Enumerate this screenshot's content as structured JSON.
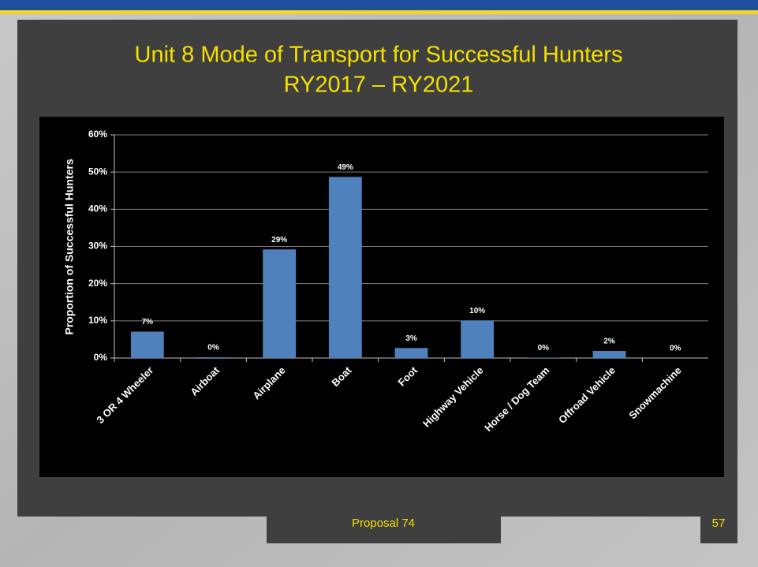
{
  "chart_data": {
    "type": "bar",
    "title": "Unit 8 Mode of Transport for Successful Hunters",
    "subtitle": "RY2017 – RY2021",
    "y_label": "Proportion of  Successful Hunters",
    "categories": [
      "3 OR 4 Wheeler",
      "Airboat",
      "Airplane",
      "Boat",
      "Foot",
      "Highway Vehicle",
      "Horse / Dog Team",
      "Offroad Vehicle",
      "Snowmachine"
    ],
    "values": [
      7.1,
      0.2,
      29.2,
      48.7,
      2.7,
      10.1,
      0.1,
      1.9,
      0
    ],
    "value_labels": [
      "7%",
      "0%",
      "29%",
      "49%",
      "3%",
      "10%",
      "0%",
      "2%",
      "0%"
    ],
    "color": "#4f81bd",
    "ylim": [
      0,
      60
    ],
    "yticks": [
      {
        "value": 0,
        "label": "0%"
      },
      {
        "value": 10,
        "label": "10%"
      },
      {
        "value": 20,
        "label": "20%"
      },
      {
        "value": 30,
        "label": "30%"
      },
      {
        "value": 40,
        "label": "40%"
      },
      {
        "value": 50,
        "label": "50%"
      },
      {
        "value": 60,
        "label": "60%"
      }
    ],
    "grid": true
  },
  "footer": {
    "text": "Proposal 74",
    "page_number": "57"
  }
}
